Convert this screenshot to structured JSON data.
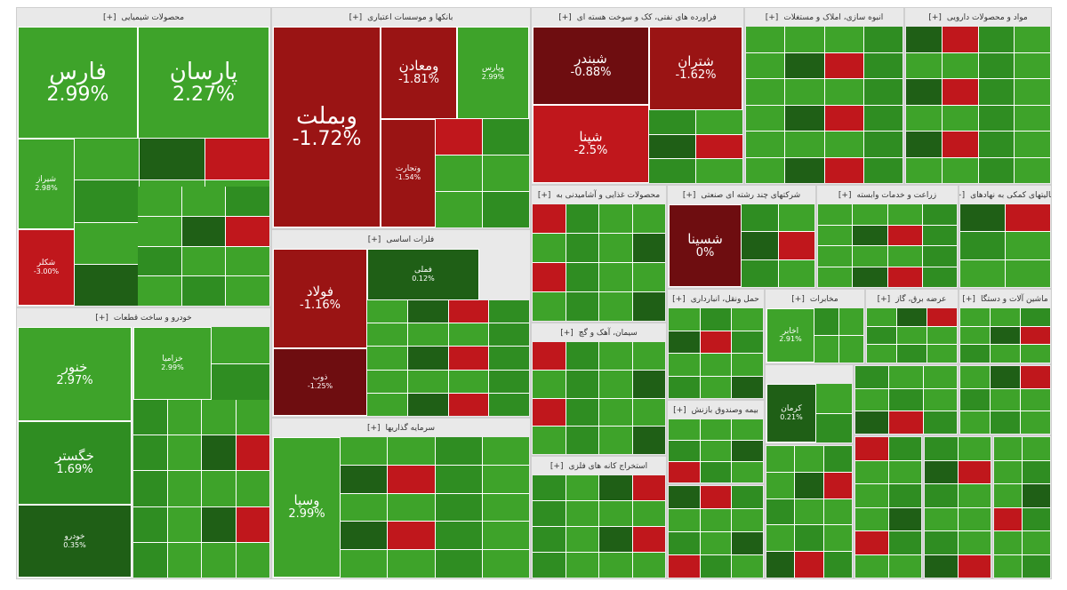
{
  "colors": {
    "green_light": "#3ea32a",
    "green_mid": "#2f8d22",
    "green_dark": "#1f5f16",
    "green_bright": "#5cd13f",
    "red_light": "#c0171c",
    "red_mid": "#9a1414",
    "red_dark": "#6e0d10"
  },
  "sectors": [
    {
      "title": "محصولات شیمیایی",
      "expand": "[+]"
    },
    {
      "title": "بانکها و موسسات اعتباری",
      "expand": "[+]"
    },
    {
      "title": "فراورده های نفتی، کک و سوخت هسته ای",
      "expand": "[+]"
    },
    {
      "title": "انبوه سازی، املاک و مستغلات",
      "expand": "[+]"
    },
    {
      "title": "مواد و محصولات دارویی",
      "expand": "[+]"
    },
    {
      "title": "خودرو و ساخت قطعات",
      "expand": "[+]"
    },
    {
      "title": "فلزات اساسی",
      "expand": "[+]"
    },
    {
      "title": "سرمایه گذاریها",
      "expand": "[+]"
    },
    {
      "title": "محصولات غذایی و آشامیدنی به",
      "expand": "[+]"
    },
    {
      "title": "شرکتهای چند رشته ای صنعتی",
      "expand": "[+]"
    },
    {
      "title": "زراعت و خدمات وابسته",
      "expand": "[+]"
    },
    {
      "title": "فعالیتهای کمکی به نهادهای",
      "expand": "[+]"
    },
    {
      "title": "حمل ونقل، انبارداری",
      "expand": "[+]"
    },
    {
      "title": "مخابرات",
      "expand": "[+]"
    },
    {
      "title": "عرضه برق، گاز",
      "expand": "[+]"
    },
    {
      "title": "ماشین آلات و دستگا",
      "expand": "[+]"
    },
    {
      "title": "سیمان، آهک و گچ",
      "expand": "[+]"
    },
    {
      "title": "استخراج کانه های فلزی",
      "expand": "[+]"
    },
    {
      "title": "بیمه وصندوق بازنش",
      "expand": "[+]"
    }
  ],
  "tiles": [
    {
      "name": "فارس",
      "pct": "2.99%"
    },
    {
      "name": "پارسان",
      "pct": "2.27%"
    },
    {
      "name": "شیراز",
      "pct": "2.98%"
    },
    {
      "name": "شکلر",
      "pct": "-3.00%"
    },
    {
      "name": "ومعادن",
      "pct": "-1.81%"
    },
    {
      "name": "وبملت",
      "pct": "-1.72%"
    },
    {
      "name": "وپارس",
      "pct": "2.99%"
    },
    {
      "name": "وتجارت",
      "pct": "-1.54%"
    },
    {
      "name": "شبندر",
      "pct": "-0.88%"
    },
    {
      "name": "شتران",
      "pct": "-1.62%"
    },
    {
      "name": "شپنا",
      "pct": "-2.5%"
    },
    {
      "name": "خنور",
      "pct": "2.97%"
    },
    {
      "name": "خگستر",
      "pct": "1.69%"
    },
    {
      "name": "خودرو",
      "pct": "0.35%"
    },
    {
      "name": "خزامیا",
      "pct": "2.99%"
    },
    {
      "name": "فولاد",
      "pct": "-1.16%"
    },
    {
      "name": "فملی",
      "pct": "0.12%"
    },
    {
      "name": "ذوب",
      "pct": "-1.25%"
    },
    {
      "name": "وسپا",
      "pct": "2.99%"
    },
    {
      "name": "شسینا",
      "pct": "0%"
    },
    {
      "name": "اخابر",
      "pct": "2.91%"
    },
    {
      "name": "کرمان",
      "pct": "0.21%"
    }
  ]
}
